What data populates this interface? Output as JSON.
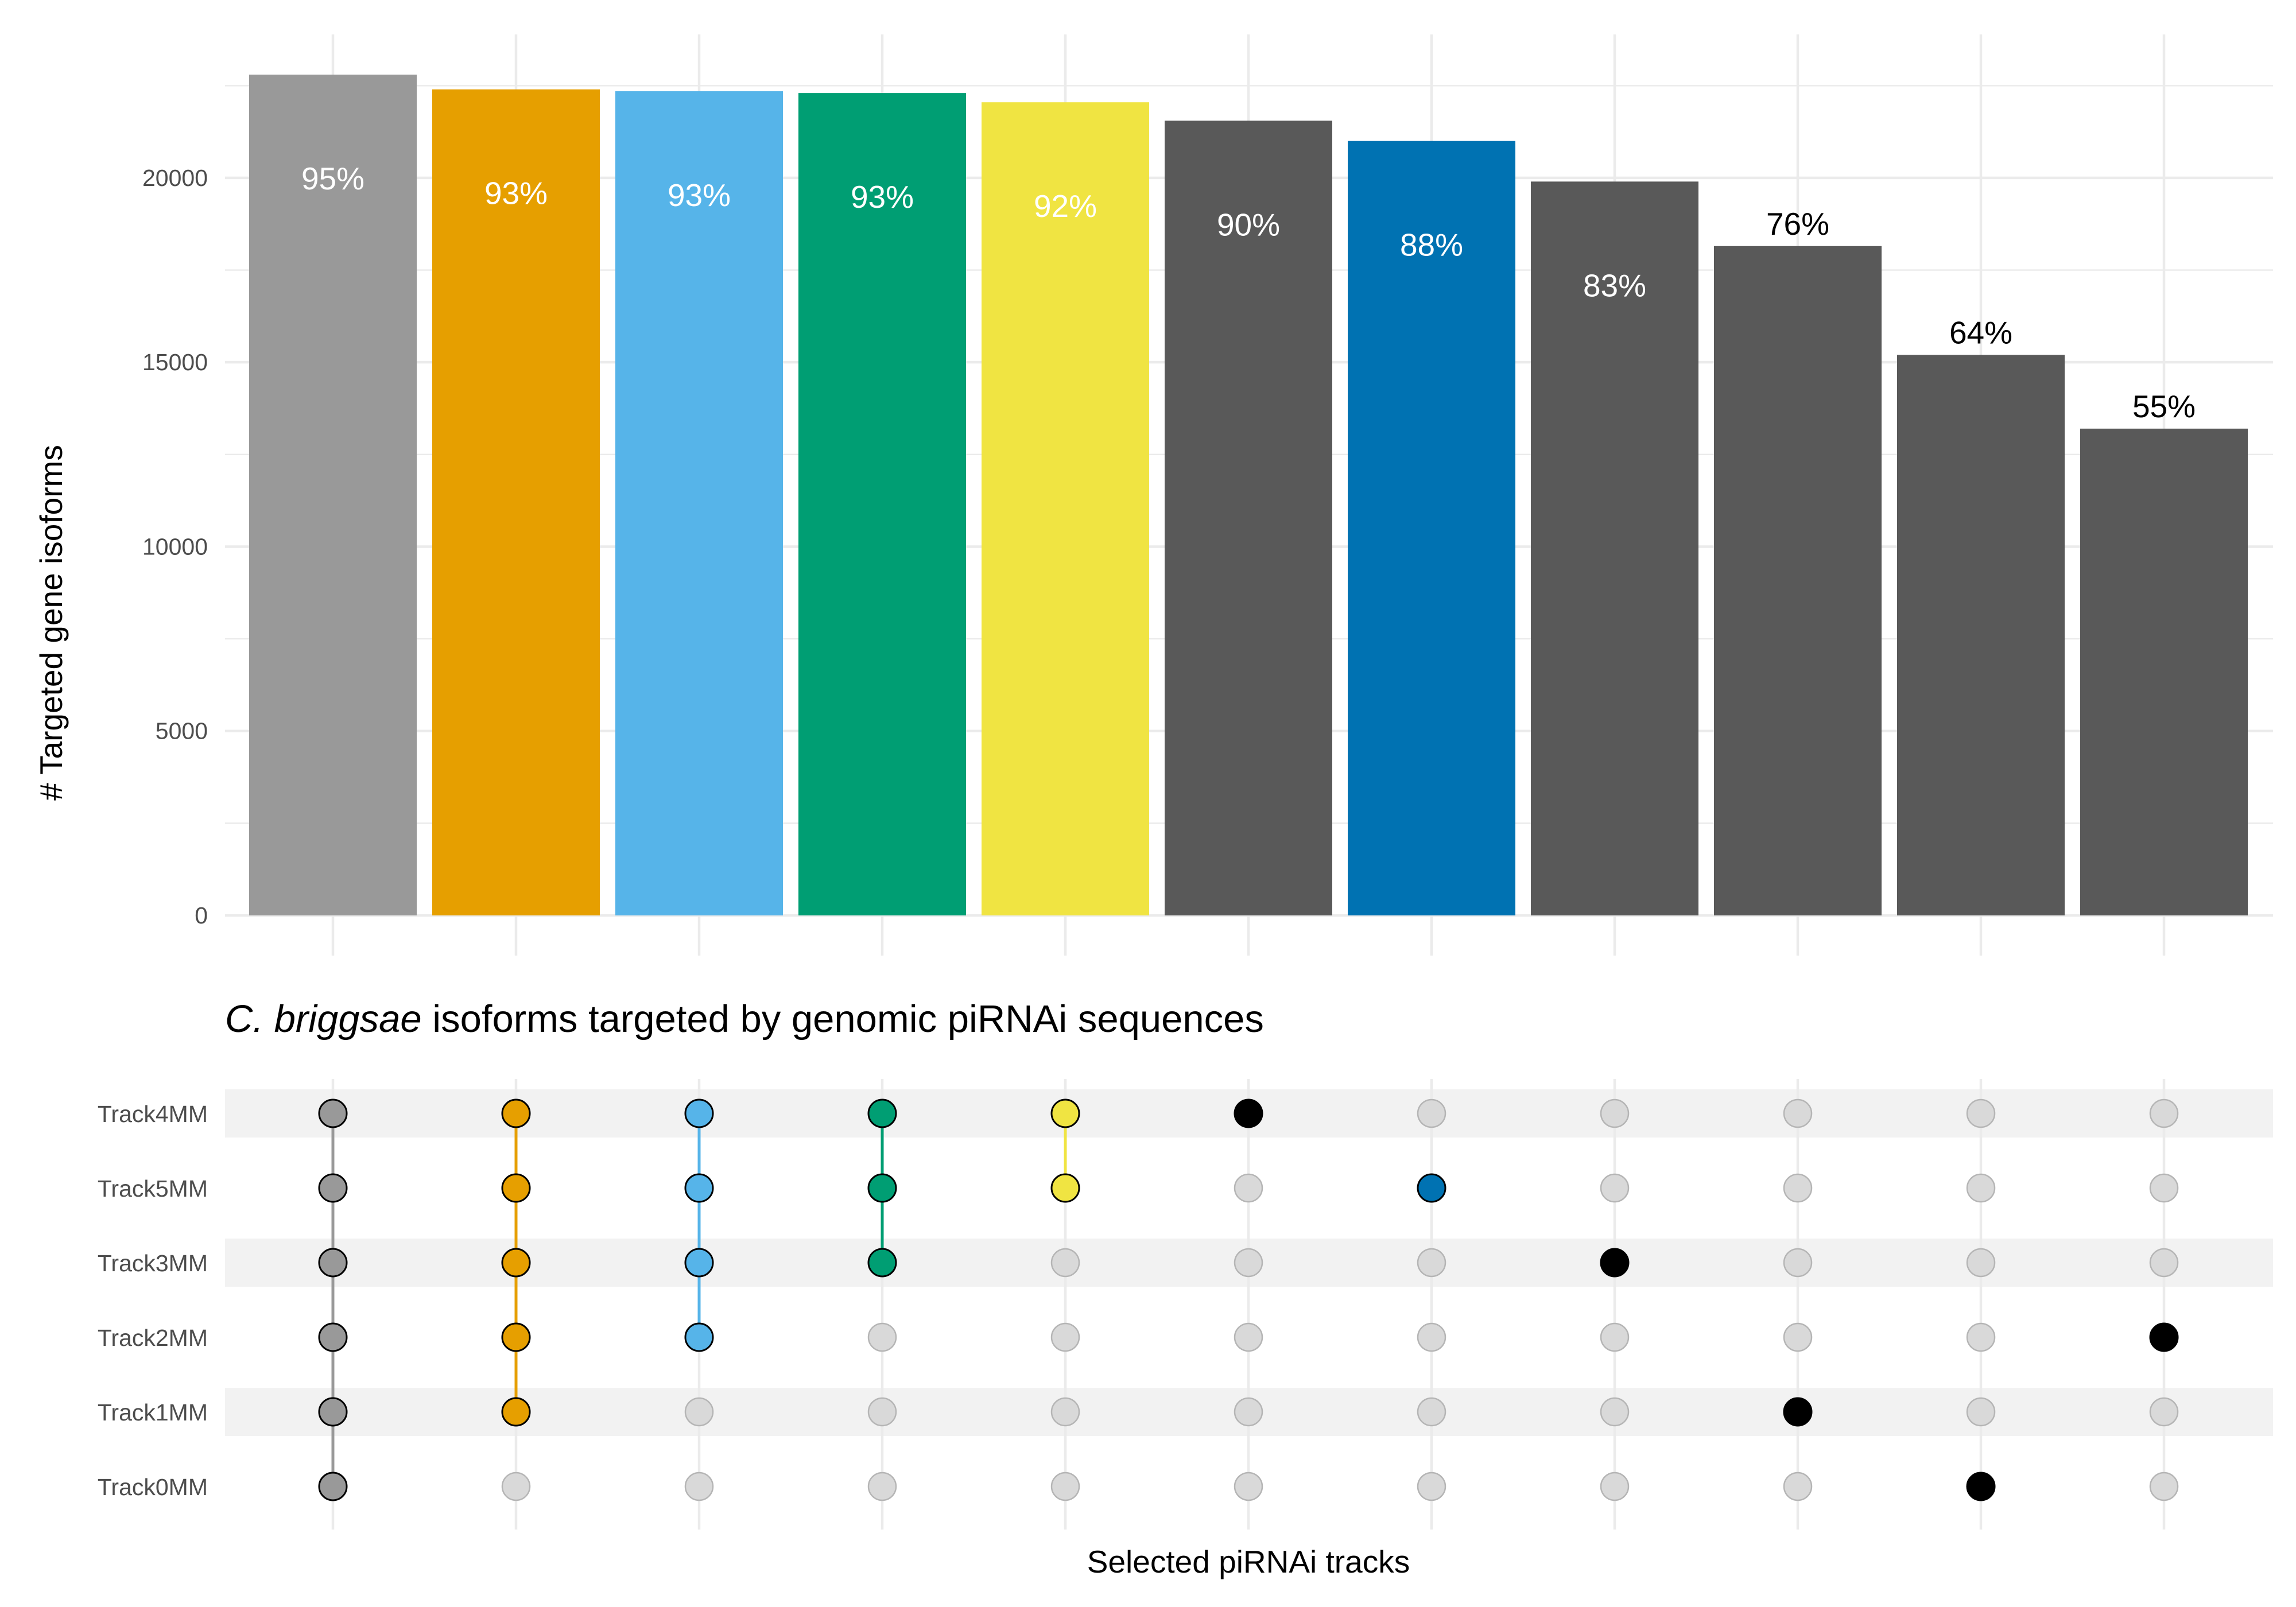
{
  "chart_data": {
    "type": "bar",
    "subtitle_italic": "C. briggsae",
    "subtitle_rest": " isoforms targeted by genomic piRNAi sequences",
    "ylabel": "# Targeted gene isoforms",
    "xlabel": "Selected piRNAi tracks",
    "ylim": [
      0,
      22800
    ],
    "yticks": [
      0,
      5000,
      10000,
      15000,
      20000
    ],
    "grid": true,
    "values": [
      22800,
      22400,
      22350,
      22300,
      22050,
      21550,
      21000,
      19900,
      18150,
      15200,
      13200
    ],
    "labels": [
      "95%",
      "93%",
      "93%",
      "93%",
      "92%",
      "90%",
      "88%",
      "83%",
      "76%",
      "64%",
      "55%"
    ],
    "colors": [
      "#999999",
      "#E69F00",
      "#56B4E9",
      "#009E73",
      "#F0E442",
      "#595959",
      "#0072B2",
      "#595959",
      "#595959",
      "#595959",
      "#595959"
    ],
    "label_colors": [
      "#ffffff",
      "#ffffff",
      "#ffffff",
      "#ffffff",
      "#ffffff",
      "#ffffff",
      "#ffffff",
      "#ffffff",
      "#000000",
      "#000000",
      "#000000"
    ],
    "label_inside": [
      true,
      true,
      true,
      true,
      true,
      true,
      true,
      true,
      false,
      false,
      false
    ],
    "tracks": [
      "Track4MM",
      "Track5MM",
      "Track3MM",
      "Track2MM",
      "Track1MM",
      "Track0MM"
    ],
    "sets": [
      [
        "Track4MM",
        "Track5MM",
        "Track3MM",
        "Track2MM",
        "Track1MM",
        "Track0MM"
      ],
      [
        "Track4MM",
        "Track5MM",
        "Track3MM",
        "Track2MM",
        "Track1MM"
      ],
      [
        "Track4MM",
        "Track5MM",
        "Track3MM",
        "Track2MM"
      ],
      [
        "Track4MM",
        "Track5MM",
        "Track3MM"
      ],
      [
        "Track4MM",
        "Track5MM"
      ],
      [
        "Track4MM"
      ],
      [
        "Track5MM"
      ],
      [
        "Track3MM"
      ],
      [
        "Track1MM"
      ],
      [
        "Track0MM"
      ],
      [
        "Track2MM"
      ]
    ],
    "dot_colors": [
      "#999999",
      "#E69F00",
      "#56B4E9",
      "#009E73",
      "#F0E442",
      "#000000",
      "#0072B2",
      "#000000",
      "#000000",
      "#000000",
      "#000000"
    ],
    "inactive_dot_color": "#d9d9d9"
  }
}
